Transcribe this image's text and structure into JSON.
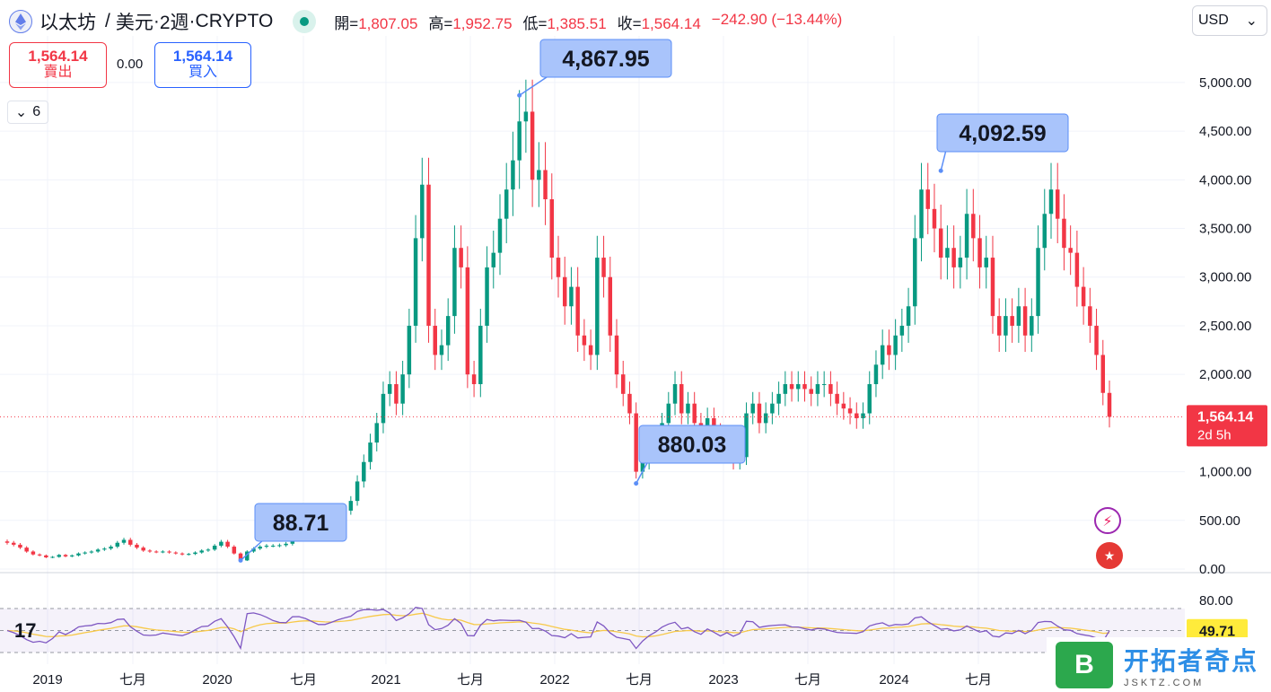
{
  "header": {
    "symbol": "以太坊",
    "sep": "/",
    "quote": "美元",
    "dot1": "·",
    "interval": "2週",
    "dot2": "·",
    "exchange": "CRYPTO",
    "open_label": "開=",
    "open": "1,807.05",
    "high_label": "高=",
    "high": "1,952.75",
    "low_label": "低=",
    "low": "1,385.51",
    "close_label": "收=",
    "close": "1,564.14",
    "change": "−242.90 (−13.44%)"
  },
  "currency_select": "USD",
  "trade": {
    "sell_price": "1,564.14",
    "sell_label": "賣出",
    "spread": "0.00",
    "buy_price": "1,564.14",
    "buy_label": "買入"
  },
  "indicators_toggle": "6",
  "tv_logo": "17",
  "price_tag": {
    "value": "1,564.14",
    "countdown": "2d 5h"
  },
  "rsi_tag": "49.71",
  "watermark": {
    "text": "开拓者奇点",
    "domain": "JSKTZ.COM",
    "logo": "B"
  },
  "colors": {
    "up": "#089981",
    "down": "#f23645",
    "rsi": "#7e57c2",
    "rsi_ma": "#f7c948",
    "callout": "#a9c4fb",
    "callout_border": "#5b8ef7"
  },
  "chart_data": {
    "type": "candlestick",
    "y_ticks": [
      "5,000.00",
      "4,500.00",
      "4,000.00",
      "3,500.00",
      "3,000.00",
      "2,500.00",
      "2,000.00",
      "1,000.00",
      "500.00",
      "0.00"
    ],
    "y_tick_values": [
      5000,
      4500,
      4000,
      3500,
      3000,
      2500,
      2000,
      1000,
      500,
      0
    ],
    "x_ticks": [
      "2019",
      "七月",
      "2020",
      "七月",
      "2021",
      "七月",
      "2022",
      "七月",
      "2023",
      "七月",
      "2024",
      "七月"
    ],
    "annotations": [
      {
        "label": "88.71",
        "value": 88.71
      },
      {
        "label": "4,867.95",
        "value": 4867.95
      },
      {
        "label": "880.03",
        "value": 880.03
      },
      {
        "label": "4,092.59",
        "value": 4092.59
      }
    ],
    "close_series": [
      270,
      250,
      220,
      180,
      150,
      140,
      120,
      125,
      145,
      130,
      140,
      160,
      170,
      180,
      200,
      210,
      230,
      270,
      300,
      250,
      220,
      190,
      180,
      175,
      180,
      170,
      160,
      150,
      155,
      170,
      190,
      200,
      240,
      280,
      230,
      160,
      88.71,
      180,
      210,
      230,
      240,
      240,
      245,
      260,
      330,
      370,
      390,
      390,
      380,
      400,
      450,
      520,
      600,
      700,
      900,
      1100,
      1300,
      1500,
      1800,
      1900,
      1700,
      2000,
      2500,
      3400,
      3950,
      2500,
      2200,
      2300,
      2600,
      3300,
      3100,
      2000,
      1900,
      2500,
      3100,
      3250,
      3600,
      3900,
      4200,
      4600,
      4700,
      4000,
      4100,
      3800,
      3200,
      3000,
      2700,
      2900,
      2400,
      2300,
      2200,
      3200,
      3000,
      2400,
      2000,
      1800,
      1600,
      1000,
      1100,
      1200,
      1300,
      1500,
      1700,
      1900,
      1600,
      1700,
      1500,
      1350,
      1550,
      1400,
      1200,
      1280,
      1100,
      1150,
      1600,
      1700,
      1500,
      1600,
      1700,
      1800,
      1900,
      1850,
      1900,
      1850,
      1800,
      1900,
      1900,
      1800,
      1700,
      1650,
      1600,
      1550,
      1600,
      1900,
      2100,
      2300,
      2200,
      2400,
      2500,
      2700,
      3400,
      3900,
      3700,
      3500,
      3200,
      3300,
      3100,
      3200,
      3650,
      3400,
      3100,
      3200,
      2600,
      2400,
      2600,
      2500,
      2700,
      2400,
      2600,
      3300,
      3650,
      3900,
      3600,
      3300,
      3250,
      2900,
      2700,
      2500,
      2200,
      1810,
      1564.14
    ],
    "rsi_levels": [
      80,
      50
    ],
    "rsi_last": 49.71
  }
}
